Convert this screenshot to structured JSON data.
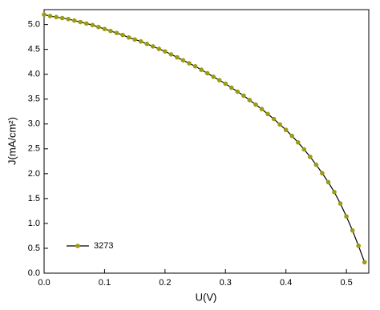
{
  "chart_data": {
    "type": "line",
    "xlabel": "U(V)",
    "ylabel": "J(mA/cm²)",
    "x": [
      0.0,
      0.01,
      0.02,
      0.03,
      0.04,
      0.05,
      0.06,
      0.07,
      0.08,
      0.09,
      0.1,
      0.11,
      0.12,
      0.13,
      0.14,
      0.15,
      0.16,
      0.17,
      0.18,
      0.19,
      0.2,
      0.21,
      0.22,
      0.23,
      0.24,
      0.25,
      0.26,
      0.27,
      0.28,
      0.29,
      0.3,
      0.31,
      0.32,
      0.33,
      0.34,
      0.35,
      0.36,
      0.37,
      0.38,
      0.39,
      0.4,
      0.41,
      0.42,
      0.43,
      0.44,
      0.45,
      0.46,
      0.47,
      0.48,
      0.49,
      0.5,
      0.51,
      0.52,
      0.53
    ],
    "series": [
      {
        "name": "3273",
        "color": "#9c9c12",
        "line_color": "#000000",
        "values": [
          5.2,
          5.17,
          5.15,
          5.13,
          5.11,
          5.08,
          5.05,
          5.02,
          4.99,
          4.95,
          4.91,
          4.87,
          4.83,
          4.79,
          4.74,
          4.7,
          4.66,
          4.61,
          4.56,
          4.51,
          4.46,
          4.4,
          4.34,
          4.28,
          4.22,
          4.16,
          4.09,
          4.02,
          3.95,
          3.88,
          3.81,
          3.73,
          3.65,
          3.57,
          3.48,
          3.39,
          3.3,
          3.2,
          3.1,
          2.99,
          2.88,
          2.76,
          2.63,
          2.49,
          2.34,
          2.18,
          2.01,
          1.83,
          1.63,
          1.4,
          1.14,
          0.86,
          0.55,
          0.22
        ]
      }
    ],
    "xlim": [
      0,
      0.537
    ],
    "ylim": [
      0,
      5.3
    ],
    "xticks": [
      {
        "value": 0,
        "label": "0.0"
      },
      0.1,
      0.2,
      0.3,
      0.4,
      0.5
    ],
    "yticks": [
      {
        "value": 0,
        "label": "0.0"
      },
      0.5,
      {
        "value": 1,
        "label": "1.0"
      },
      1.5,
      {
        "value": 2,
        "label": "2.0"
      },
      2.5,
      {
        "value": 3,
        "label": "3.0"
      },
      3.5,
      {
        "value": 4,
        "label": "4.0"
      },
      4.5,
      {
        "value": 5,
        "label": "5.0"
      }
    ],
    "legend": "lower-left"
  }
}
